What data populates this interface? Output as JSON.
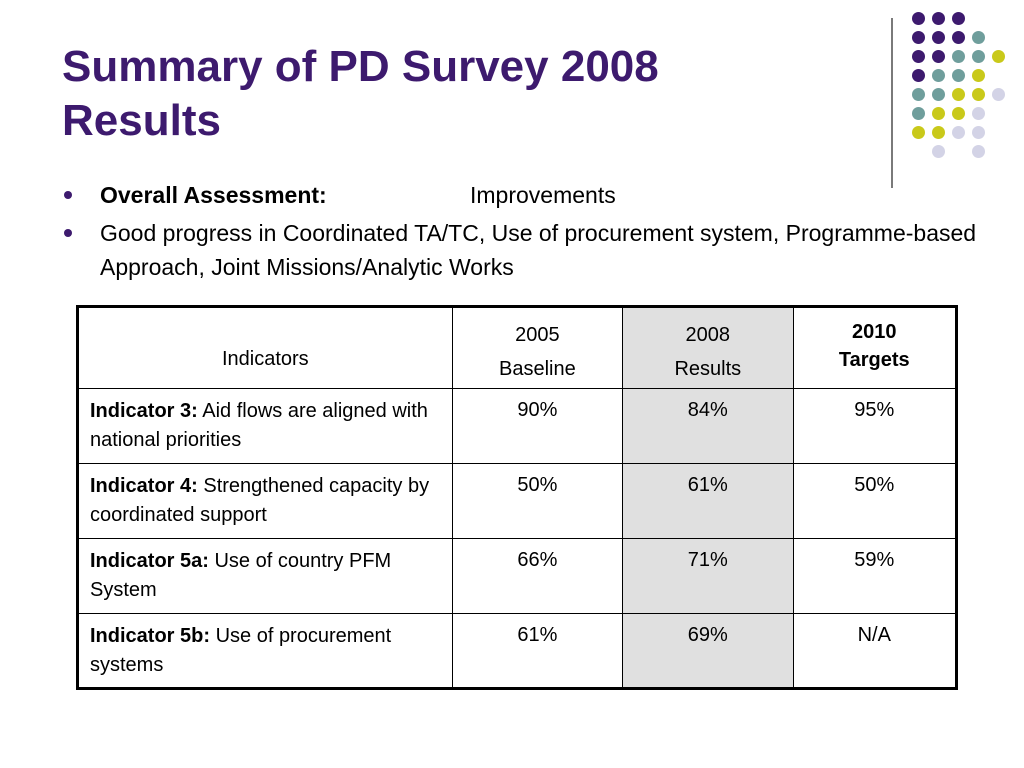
{
  "slide": {
    "title_line1": "Summary of PD Survey 2008",
    "title_line2": "Results"
  },
  "colors": {
    "title": "#3d1a6e",
    "dot_purple": "#3d1a6e",
    "dot_teal": "#6f9e9c",
    "dot_yellow": "#c9c91a",
    "dot_lavender": "#d3d3e6",
    "table_shade": "#e0e0e0"
  },
  "bullets": [
    {
      "label": "Overall Assessment:",
      "text": "Improvements"
    },
    {
      "text": "Good progress in Coordinated TA/TC, Use of procurement system, Programme-based Approach, Joint Missions/Analytic Works"
    }
  ],
  "table": {
    "headers": {
      "indicators": "Indicators",
      "baseline_year": "2005",
      "baseline_label": "Baseline",
      "results_year": "2008",
      "results_label": "Results",
      "targets_year": "2010",
      "targets_label": "Targets"
    },
    "rows": [
      {
        "name": "Indicator 3:",
        "desc": "Aid flows are aligned with national priorities",
        "baseline": "90%",
        "results": "84%",
        "targets": "95%"
      },
      {
        "name": "Indicator 4:",
        "desc": "Strengthened capacity by coordinated support",
        "baseline": "50%",
        "results": "61%",
        "targets": "50%"
      },
      {
        "name": "Indicator 5a:",
        "desc": "Use of country PFM System",
        "baseline": "66%",
        "results": "71%",
        "targets": "59%"
      },
      {
        "name": "Indicator 5b:",
        "desc": "Use of procurement systems",
        "baseline": "61%",
        "results": "69%",
        "targets": "N/A"
      }
    ]
  }
}
